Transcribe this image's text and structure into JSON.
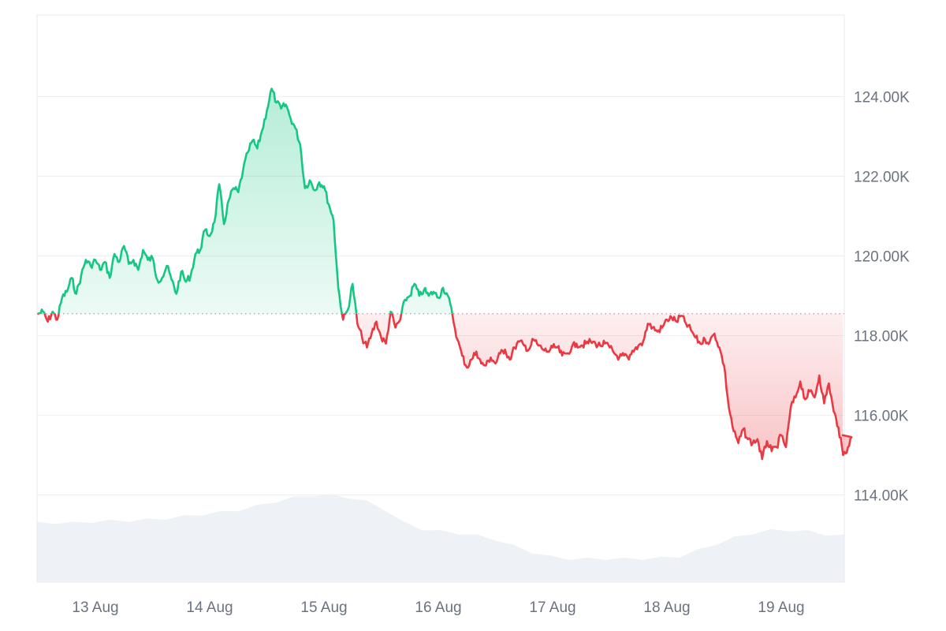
{
  "chart_data": {
    "type": "line",
    "title": "",
    "xlabel": "",
    "ylabel": "",
    "x_range": [
      "2025-08-12 12:00",
      "2025-08-19 15:00"
    ],
    "ylim": [
      112000,
      126000
    ],
    "y_ticks": [
      {
        "value": 124000,
        "label": "124.00K"
      },
      {
        "value": 122000,
        "label": "122.00K"
      },
      {
        "value": 120000,
        "label": "120.00K"
      },
      {
        "value": 118000,
        "label": "118.00K"
      },
      {
        "value": 116000,
        "label": "116.00K"
      },
      {
        "value": 114000,
        "label": "114.00K"
      }
    ],
    "x_ticks": [
      {
        "value": "2025-08-13 00:00",
        "label": "13 Aug"
      },
      {
        "value": "2025-08-14 00:00",
        "label": "14 Aug"
      },
      {
        "value": "2025-08-15 00:00",
        "label": "15 Aug"
      },
      {
        "value": "2025-08-16 00:00",
        "label": "16 Aug"
      },
      {
        "value": "2025-08-17 00:00",
        "label": "17 Aug"
      },
      {
        "value": "2025-08-18 00:00",
        "label": "18 Aug"
      },
      {
        "value": "2025-08-19 00:00",
        "label": "19 Aug"
      }
    ],
    "baseline": 118550,
    "grid": true,
    "colors": {
      "up_line": "#16c784",
      "down_line": "#ea3943",
      "up_fill": "#16c784",
      "down_fill": "#ea3943",
      "volume": "#eef1f5",
      "grid": "#eeeeee",
      "baseline": "#9aa3ae",
      "axis_text": "#6b7280"
    },
    "series": [
      {
        "values": [
          [
            "2025-08-12 12:00",
            118550
          ],
          [
            "2025-08-12 13:00",
            118600
          ],
          [
            "2025-08-12 14:00",
            118350
          ],
          [
            "2025-08-12 15:00",
            118600
          ],
          [
            "2025-08-12 16:00",
            118400
          ],
          [
            "2025-08-12 17:00",
            118950
          ],
          [
            "2025-08-12 18:00",
            119100
          ],
          [
            "2025-08-12 19:00",
            119450
          ],
          [
            "2025-08-12 20:00",
            119050
          ],
          [
            "2025-08-12 21:00",
            119500
          ],
          [
            "2025-08-12 22:00",
            119900
          ],
          [
            "2025-08-12 23:00",
            119750
          ],
          [
            "2025-08-13 00:00",
            119900
          ],
          [
            "2025-08-13 01:00",
            119650
          ],
          [
            "2025-08-13 02:00",
            119850
          ],
          [
            "2025-08-13 03:00",
            119450
          ],
          [
            "2025-08-13 04:00",
            120050
          ],
          [
            "2025-08-13 05:00",
            119850
          ],
          [
            "2025-08-13 06:00",
            120250
          ],
          [
            "2025-08-13 07:00",
            119800
          ],
          [
            "2025-08-13 08:00",
            119900
          ],
          [
            "2025-08-13 09:00",
            119650
          ],
          [
            "2025-08-13 10:00",
            120150
          ],
          [
            "2025-08-13 11:00",
            119900
          ],
          [
            "2025-08-13 12:00",
            119950
          ],
          [
            "2025-08-13 13:00",
            119400
          ],
          [
            "2025-08-13 14:00",
            119450
          ],
          [
            "2025-08-13 15:00",
            119750
          ],
          [
            "2025-08-13 16:00",
            119400
          ],
          [
            "2025-08-13 17:00",
            119050
          ],
          [
            "2025-08-13 18:00",
            119600
          ],
          [
            "2025-08-13 19:00",
            119350
          ],
          [
            "2025-08-13 20:00",
            119500
          ],
          [
            "2025-08-13 21:00",
            120050
          ],
          [
            "2025-08-13 22:00",
            120150
          ],
          [
            "2025-08-13 23:00",
            120650
          ],
          [
            "2025-08-14 00:00",
            120500
          ],
          [
            "2025-08-14 01:00",
            120850
          ],
          [
            "2025-08-14 02:00",
            121800
          ],
          [
            "2025-08-14 03:00",
            120800
          ],
          [
            "2025-08-14 04:00",
            121400
          ],
          [
            "2025-08-14 05:00",
            121700
          ],
          [
            "2025-08-14 06:00",
            121600
          ],
          [
            "2025-08-14 07:00",
            122150
          ],
          [
            "2025-08-14 08:00",
            122600
          ],
          [
            "2025-08-14 09:00",
            122900
          ],
          [
            "2025-08-14 10:00",
            122700
          ],
          [
            "2025-08-14 11:00",
            123150
          ],
          [
            "2025-08-14 12:00",
            123650
          ],
          [
            "2025-08-14 13:00",
            124200
          ],
          [
            "2025-08-14 14:00",
            123850
          ],
          [
            "2025-08-14 15:00",
            123700
          ],
          [
            "2025-08-14 16:00",
            123800
          ],
          [
            "2025-08-14 17:00",
            123450
          ],
          [
            "2025-08-14 18:00",
            123200
          ],
          [
            "2025-08-14 19:00",
            122800
          ],
          [
            "2025-08-14 20:00",
            121700
          ],
          [
            "2025-08-14 21:00",
            121900
          ],
          [
            "2025-08-14 22:00",
            121650
          ],
          [
            "2025-08-14 23:00",
            121850
          ],
          [
            "2025-08-15 00:00",
            121750
          ],
          [
            "2025-08-15 01:00",
            121300
          ],
          [
            "2025-08-15 02:00",
            120900
          ],
          [
            "2025-08-15 03:00",
            119200
          ],
          [
            "2025-08-15 04:00",
            118400
          ],
          [
            "2025-08-15 05:00",
            118650
          ],
          [
            "2025-08-15 06:00",
            119300
          ],
          [
            "2025-08-15 07:00",
            118300
          ],
          [
            "2025-08-15 08:00",
            117950
          ],
          [
            "2025-08-15 09:00",
            117700
          ],
          [
            "2025-08-15 10:00",
            118050
          ],
          [
            "2025-08-15 11:00",
            118350
          ],
          [
            "2025-08-15 12:00",
            117950
          ],
          [
            "2025-08-15 13:00",
            117800
          ],
          [
            "2025-08-15 14:00",
            118600
          ],
          [
            "2025-08-15 15:00",
            118200
          ],
          [
            "2025-08-15 16:00",
            118400
          ],
          [
            "2025-08-15 17:00",
            118900
          ],
          [
            "2025-08-15 18:00",
            119000
          ],
          [
            "2025-08-15 19:00",
            119300
          ],
          [
            "2025-08-15 20:00",
            119000
          ],
          [
            "2025-08-15 21:00",
            119150
          ],
          [
            "2025-08-15 22:00",
            119000
          ],
          [
            "2025-08-15 23:00",
            119100
          ],
          [
            "2025-08-16 00:00",
            118950
          ],
          [
            "2025-08-16 01:00",
            119200
          ],
          [
            "2025-08-16 02:00",
            119000
          ],
          [
            "2025-08-16 03:00",
            118500
          ],
          [
            "2025-08-16 04:00",
            117900
          ],
          [
            "2025-08-16 05:00",
            117500
          ],
          [
            "2025-08-16 06:00",
            117200
          ],
          [
            "2025-08-16 07:00",
            117400
          ],
          [
            "2025-08-16 08:00",
            117600
          ],
          [
            "2025-08-16 09:00",
            117300
          ],
          [
            "2025-08-16 10:00",
            117250
          ],
          [
            "2025-08-16 11:00",
            117450
          ],
          [
            "2025-08-16 12:00",
            117300
          ],
          [
            "2025-08-16 13:00",
            117550
          ],
          [
            "2025-08-16 14:00",
            117650
          ],
          [
            "2025-08-16 15:00",
            117400
          ],
          [
            "2025-08-16 16:00",
            117700
          ],
          [
            "2025-08-16 17:00",
            117850
          ],
          [
            "2025-08-16 18:00",
            117750
          ],
          [
            "2025-08-16 19:00",
            117650
          ],
          [
            "2025-08-16 20:00",
            117900
          ],
          [
            "2025-08-16 21:00",
            117750
          ],
          [
            "2025-08-16 22:00",
            117650
          ],
          [
            "2025-08-16 23:00",
            117600
          ],
          [
            "2025-08-17 00:00",
            117700
          ],
          [
            "2025-08-17 01:00",
            117700
          ],
          [
            "2025-08-17 02:00",
            117500
          ],
          [
            "2025-08-17 03:00",
            117550
          ],
          [
            "2025-08-17 04:00",
            117700
          ],
          [
            "2025-08-17 05:00",
            117800
          ],
          [
            "2025-08-17 06:00",
            117750
          ],
          [
            "2025-08-17 07:00",
            117800
          ],
          [
            "2025-08-17 08:00",
            117850
          ],
          [
            "2025-08-17 09:00",
            117800
          ],
          [
            "2025-08-17 10:00",
            117750
          ],
          [
            "2025-08-17 11:00",
            117800
          ],
          [
            "2025-08-17 12:00",
            117700
          ],
          [
            "2025-08-17 13:00",
            117550
          ],
          [
            "2025-08-17 14:00",
            117450
          ],
          [
            "2025-08-17 15:00",
            117500
          ],
          [
            "2025-08-17 16:00",
            117400
          ],
          [
            "2025-08-17 17:00",
            117600
          ],
          [
            "2025-08-17 18:00",
            117750
          ],
          [
            "2025-08-17 19:00",
            117850
          ],
          [
            "2025-08-17 20:00",
            118300
          ],
          [
            "2025-08-17 21:00",
            118200
          ],
          [
            "2025-08-17 22:00",
            118100
          ],
          [
            "2025-08-17 23:00",
            118200
          ],
          [
            "2025-08-18 00:00",
            118400
          ],
          [
            "2025-08-18 01:00",
            118450
          ],
          [
            "2025-08-18 02:00",
            118350
          ],
          [
            "2025-08-18 03:00",
            118500
          ],
          [
            "2025-08-18 04:00",
            118300
          ],
          [
            "2025-08-18 05:00",
            118150
          ],
          [
            "2025-08-18 06:00",
            117950
          ],
          [
            "2025-08-18 07:00",
            117800
          ],
          [
            "2025-08-18 08:00",
            117900
          ],
          [
            "2025-08-18 09:00",
            117850
          ],
          [
            "2025-08-18 10:00",
            118050
          ],
          [
            "2025-08-18 11:00",
            117700
          ],
          [
            "2025-08-18 12:00",
            117250
          ],
          [
            "2025-08-18 13:00",
            116200
          ],
          [
            "2025-08-18 14:00",
            115600
          ],
          [
            "2025-08-18 15:00",
            115300
          ],
          [
            "2025-08-18 16:00",
            115650
          ],
          [
            "2025-08-18 17:00",
            115400
          ],
          [
            "2025-08-18 18:00",
            115300
          ],
          [
            "2025-08-18 19:00",
            115400
          ],
          [
            "2025-08-18 20:00",
            114900
          ],
          [
            "2025-08-18 21:00",
            115350
          ],
          [
            "2025-08-18 22:00",
            115100
          ],
          [
            "2025-08-18 23:00",
            115200
          ],
          [
            "2025-08-19 00:00",
            115500
          ],
          [
            "2025-08-19 01:00",
            115200
          ],
          [
            "2025-08-19 02:00",
            116200
          ],
          [
            "2025-08-19 03:00",
            116450
          ],
          [
            "2025-08-19 04:00",
            116850
          ],
          [
            "2025-08-19 05:00",
            116400
          ],
          [
            "2025-08-19 06:00",
            116600
          ],
          [
            "2025-08-19 07:00",
            116450
          ],
          [
            "2025-08-19 08:00",
            117000
          ],
          [
            "2025-08-19 09:00",
            116300
          ],
          [
            "2025-08-19 10:00",
            116800
          ],
          [
            "2025-08-19 11:00",
            116100
          ],
          [
            "2025-08-19 12:00",
            115700
          ],
          [
            "2025-08-19 13:00",
            115000
          ],
          [
            "2025-08-19 14:00",
            115200
          ],
          [
            "2025-08-19 15:00",
            115500
          ]
        ]
      }
    ],
    "volume_relative": [
      0.28,
      0.28,
      0.28,
      0.285,
      0.29,
      0.29,
      0.295,
      0.3,
      0.31,
      0.32,
      0.33,
      0.34,
      0.36,
      0.38,
      0.4,
      0.41,
      0.41,
      0.4,
      0.38,
      0.34,
      0.28,
      0.25,
      0.24,
      0.23,
      0.22,
      0.2,
      0.17,
      0.14,
      0.12,
      0.11,
      0.11,
      0.11,
      0.11,
      0.11,
      0.115,
      0.12,
      0.15,
      0.18,
      0.21,
      0.23,
      0.245,
      0.245,
      0.24,
      0.225,
      0.22
    ]
  }
}
